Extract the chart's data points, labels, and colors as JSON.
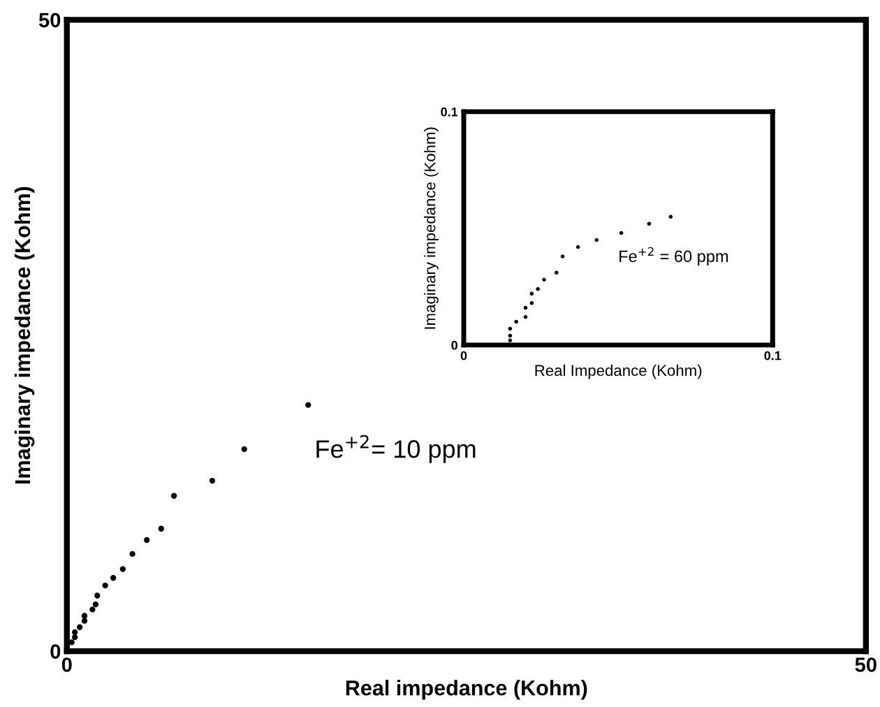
{
  "chart_data": [
    {
      "type": "scatter",
      "xlabel": "Real impedance (Kohm)",
      "ylabel": "Imaginary impedance (Kohm)",
      "xlim": [
        0,
        50
      ],
      "ylim": [
        0,
        50
      ],
      "xticks": [
        0,
        50
      ],
      "yticks": [
        0,
        50
      ],
      "marker": "circle",
      "color": "#000000",
      "x": [
        15.1,
        11.1,
        9.1,
        6.7,
        5.9,
        5.0,
        4.1,
        3.5,
        2.9,
        2.4,
        1.9,
        1.8,
        1.6,
        1.1,
        1.1,
        0.8,
        0.5,
        0.5,
        0.3
      ],
      "values": [
        19.5,
        16.0,
        13.5,
        12.3,
        9.7,
        8.8,
        7.7,
        6.5,
        5.8,
        5.2,
        4.4,
        3.7,
        3.3,
        2.8,
        2.4,
        1.9,
        1.5,
        1.1,
        0.7
      ],
      "annotations": [
        "Fe$^{+2}$= 10 ppm"
      ]
    },
    {
      "type": "scatter",
      "xlabel": "Real Impedance (Kohm)",
      "ylabel": "Imaginary impedance (Kohm)",
      "xlim": [
        0,
        0.1
      ],
      "ylim": [
        0,
        0.1
      ],
      "xticks": [
        0,
        0.1
      ],
      "yticks": [
        0,
        0.1
      ],
      "marker": "circle",
      "color": "#000000",
      "x": [
        0.067,
        0.06,
        0.051,
        0.043,
        0.037,
        0.032,
        0.03,
        0.026,
        0.024,
        0.022,
        0.022,
        0.02,
        0.02,
        0.017,
        0.015,
        0.015,
        0.015
      ],
      "values": [
        0.055,
        0.052,
        0.048,
        0.045,
        0.042,
        0.038,
        0.031,
        0.028,
        0.024,
        0.022,
        0.018,
        0.016,
        0.012,
        0.01,
        0.007,
        0.004,
        0.002
      ],
      "annotations": [
        "Fe$^{+2}$ = 60 ppm"
      ]
    }
  ]
}
